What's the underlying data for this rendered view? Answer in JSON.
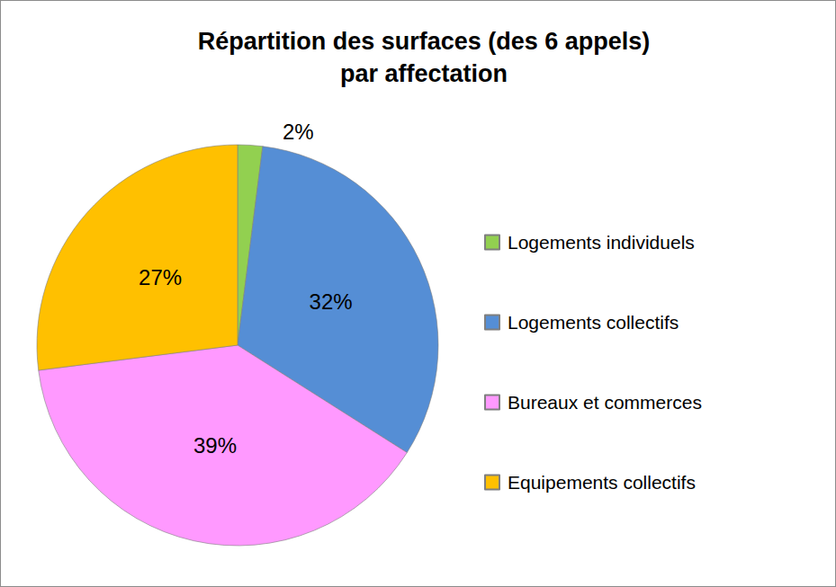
{
  "chart_data": {
    "type": "pie",
    "title": "Répartition des surfaces (des 6 appels)\npar affectation",
    "categories": [
      "Logements individuels",
      "Logements collectifs",
      "Bureaux et commerces",
      "Equipements collectifs"
    ],
    "values": [
      2,
      32,
      39,
      27
    ],
    "value_labels": [
      "2%",
      "32%",
      "39%",
      "27%"
    ],
    "colors": [
      "#92d050",
      "#558ed5",
      "#ff99ff",
      "#ffc000"
    ],
    "data_labels": true,
    "legend": "right"
  }
}
